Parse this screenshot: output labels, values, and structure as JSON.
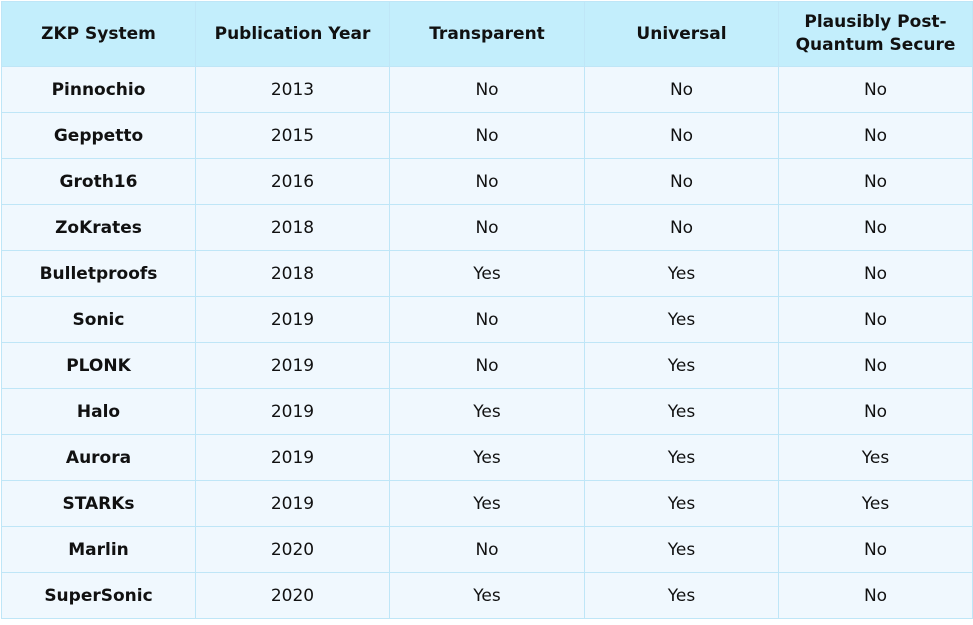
{
  "table": {
    "headers": [
      "ZKP System",
      "Publication Year",
      "Transparent",
      "Universal",
      "Plausibly Post-Quantum Secure"
    ],
    "rows": [
      [
        "Pinnochio",
        "2013",
        "No",
        "No",
        "No"
      ],
      [
        "Geppetto",
        "2015",
        "No",
        "No",
        "No"
      ],
      [
        "Groth16",
        "2016",
        "No",
        "No",
        "No"
      ],
      [
        "ZoKrates",
        "2018",
        "No",
        "No",
        "No"
      ],
      [
        "Bulletproofs",
        "2018",
        "Yes",
        "Yes",
        "No"
      ],
      [
        "Sonic",
        "2019",
        "No",
        "Yes",
        "No"
      ],
      [
        "PLONK",
        "2019",
        "No",
        "Yes",
        "No"
      ],
      [
        "Halo",
        "2019",
        "Yes",
        "Yes",
        "No"
      ],
      [
        "Aurora",
        "2019",
        "Yes",
        "Yes",
        "Yes"
      ],
      [
        "STARKs",
        "2019",
        "Yes",
        "Yes",
        "Yes"
      ],
      [
        "Marlin",
        "2020",
        "No",
        "Yes",
        "No"
      ],
      [
        "SuperSonic",
        "2020",
        "Yes",
        "Yes",
        "No"
      ]
    ]
  },
  "colors": {
    "header_background": "#c3eefc",
    "row_background": "#f0f8fe",
    "border": "#bfe6f7",
    "text": "#111111"
  }
}
